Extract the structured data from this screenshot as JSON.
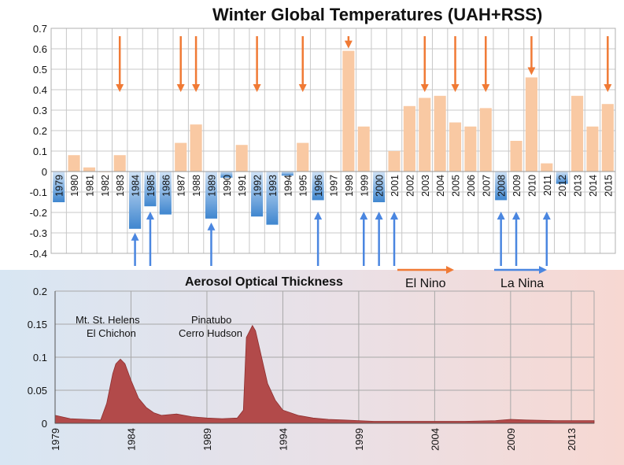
{
  "chart_data": [
    {
      "type": "bar",
      "title": "Winter Global Temperatures (UAH+RSS)",
      "categories": [
        "1979",
        "1980",
        "1981",
        "1982",
        "1983",
        "1984",
        "1985",
        "1986",
        "1987",
        "1988",
        "1989",
        "1990",
        "1991",
        "1992",
        "1993",
        "1994",
        "1995",
        "1996",
        "1997",
        "1998",
        "1999",
        "2000",
        "2001",
        "2002",
        "2003",
        "2004",
        "2005",
        "2006",
        "2007",
        "2008",
        "2009",
        "2010",
        "2011",
        "2012",
        "2013",
        "2014",
        "2015"
      ],
      "values": [
        -0.15,
        0.08,
        0.02,
        0.0,
        0.08,
        -0.28,
        -0.17,
        -0.21,
        0.14,
        0.23,
        -0.23,
        -0.03,
        0.13,
        -0.22,
        -0.26,
        -0.02,
        0.14,
        -0.14,
        0.0,
        0.59,
        0.22,
        -0.15,
        0.1,
        0.32,
        0.36,
        0.37,
        0.24,
        0.22,
        0.31,
        -0.14,
        0.15,
        0.46,
        0.04,
        -0.06,
        0.37,
        0.22,
        0.33
      ],
      "ylim": [
        -0.4,
        0.7
      ],
      "yticks": [
        "0.7",
        "0.6",
        "0.5",
        "0.4",
        "0.3",
        "0.2",
        "0.1",
        "0",
        "-0.1",
        "-0.2",
        "-0.3",
        "-0.4"
      ],
      "grid": true,
      "colors": {
        "positive": "#f9c9a3",
        "negative": "#4a90d4"
      },
      "el_nino_arrow_years": [
        "1983",
        "1987",
        "1988",
        "1992",
        "1995",
        "1998",
        "2003",
        "2005",
        "2007",
        "2010",
        "2015"
      ],
      "la_nina_arrow_years": [
        "1984",
        "1985",
        "1989",
        "1996",
        "1999",
        "2000",
        "2001",
        "2008",
        "2009",
        "2011"
      ],
      "arrow_colors": {
        "el_nino": "#f07a35",
        "la_nina": "#4a86e0"
      },
      "legend": [
        {
          "label": "El Nino",
          "color": "#f07a35"
        },
        {
          "label": "La Nina",
          "color": "#4a86e0"
        }
      ],
      "legend_placement": "bottom-right"
    },
    {
      "type": "area",
      "title": "Aerosol Optical Thickness",
      "x": [
        1979,
        1980,
        1981,
        1982,
        1982.4,
        1982.8,
        1983.0,
        1983.3,
        1983.6,
        1984.0,
        1984.5,
        1985.0,
        1985.5,
        1986,
        1987,
        1988,
        1989,
        1990,
        1991,
        1991.4,
        1991.6,
        1992.0,
        1992.2,
        1992.5,
        1993.0,
        1993.5,
        1994,
        1995,
        1996,
        1997,
        1998,
        1999,
        2000,
        2002,
        2004,
        2006,
        2008,
        2009,
        2010,
        2012,
        2014,
        2014.5
      ],
      "y": [
        0.012,
        0.007,
        0.006,
        0.005,
        0.03,
        0.075,
        0.09,
        0.097,
        0.09,
        0.065,
        0.038,
        0.024,
        0.016,
        0.012,
        0.014,
        0.01,
        0.008,
        0.007,
        0.008,
        0.02,
        0.13,
        0.148,
        0.14,
        0.11,
        0.06,
        0.035,
        0.02,
        0.012,
        0.008,
        0.006,
        0.005,
        0.004,
        0.003,
        0.003,
        0.003,
        0.003,
        0.004,
        0.006,
        0.005,
        0.004,
        0.004,
        0.004
      ],
      "xlim": [
        1979,
        2014.5
      ],
      "ylim": [
        0,
        0.2
      ],
      "xticks": [
        "1979",
        "1984",
        "1989",
        "1994",
        "1999",
        "2004",
        "2009",
        "2013"
      ],
      "yticks": [
        "0.2",
        "0.15",
        "0.1",
        "0.05",
        "0"
      ],
      "grid": true,
      "fill_color": "#b24a4a",
      "annotations": [
        {
          "lines": [
            "Mt. St. Helens",
            "El Chichon"
          ]
        },
        {
          "lines": [
            "Pinatubo",
            "Cerro Hudson"
          ]
        }
      ]
    }
  ]
}
